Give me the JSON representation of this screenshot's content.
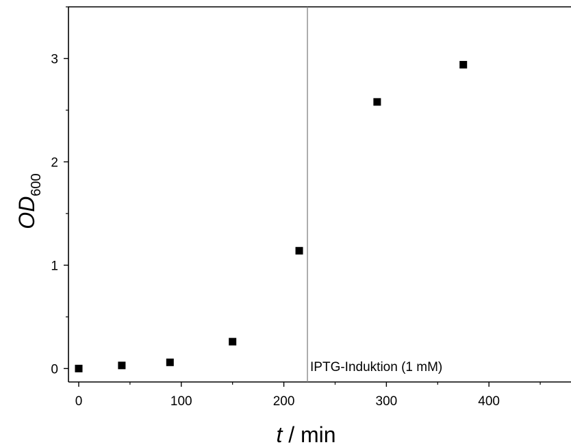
{
  "chart_data": {
    "type": "scatter",
    "xlim": [
      -10,
      480
    ],
    "ylim": [
      -0.13,
      3.5
    ],
    "x_ticks": [
      0,
      100,
      200,
      300,
      400
    ],
    "y_ticks": [
      0,
      1,
      2,
      3
    ],
    "x_tick_labels": [
      "0",
      "100",
      "200",
      "300",
      "400"
    ],
    "y_tick_labels": [
      "0",
      "1",
      "2",
      "3"
    ],
    "xlabel": {
      "var": "t",
      "unit": " / min"
    },
    "ylabel": {
      "var": "OD",
      "sub": "600"
    },
    "grid": false,
    "series": [
      {
        "marker": "square",
        "color": "#000000",
        "points": [
          {
            "x": 0,
            "y": 0.0
          },
          {
            "x": 42,
            "y": 0.03
          },
          {
            "x": 89,
            "y": 0.06
          },
          {
            "x": 150,
            "y": 0.26
          },
          {
            "x": 215,
            "y": 1.14
          },
          {
            "x": 291,
            "y": 2.58
          },
          {
            "x": 375,
            "y": 2.94
          }
        ]
      }
    ],
    "annotations": [
      {
        "type": "vline",
        "x": 223,
        "color": "#808080",
        "label": "IPTG-Induktion (1 mM)"
      }
    ]
  }
}
